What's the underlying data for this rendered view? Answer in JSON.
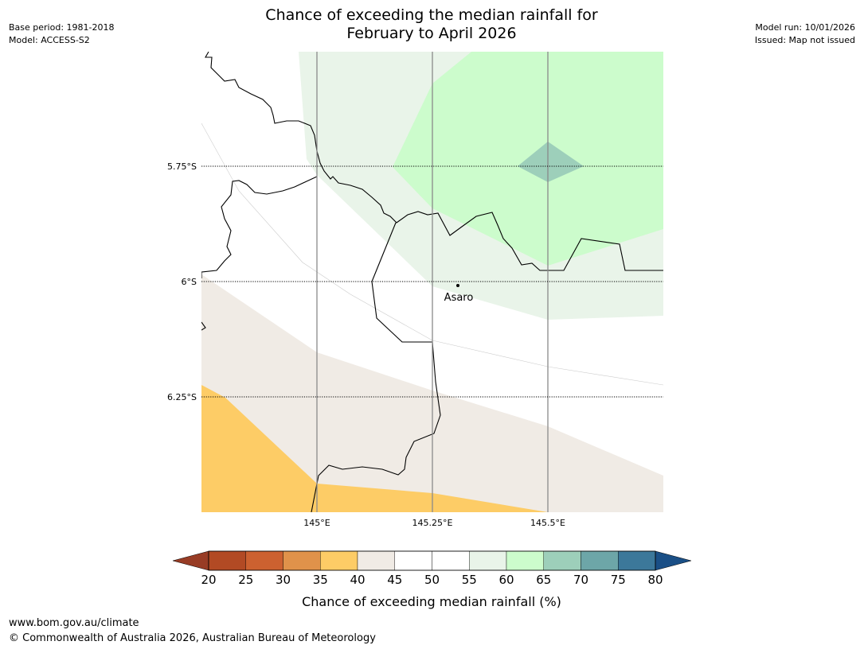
{
  "header": {
    "base_period": "Base period: 1981-2018",
    "model": "Model: ACCESS-S2",
    "model_run": "Model run: 10/01/2026",
    "issued": "Issued: Map not issued",
    "title_line1": "Chance of exceeding the median rainfall for",
    "title_line2": "February to April 2026"
  },
  "map": {
    "lat_labels": [
      "5.75°S",
      "6°S",
      "6.25°S"
    ],
    "lon_labels": [
      "145°E",
      "145.25°E",
      "145.5°E"
    ],
    "town": "Asaro",
    "colors": {
      "c30_35": "#e0924a",
      "c35_40": "#fdcc66",
      "c40_45": "#f0ebe5",
      "c45_55": "#ffffff",
      "c55_60": "#e9f4e9",
      "c60_65": "#ccfccc",
      "c65_70": "#9dcfba"
    }
  },
  "colorbar": {
    "label": "Chance of exceeding median rainfall (%)",
    "ticks": [
      "20",
      "25",
      "30",
      "35",
      "40",
      "45",
      "50",
      "55",
      "60",
      "65",
      "70",
      "75",
      "80"
    ],
    "colors": [
      "#b24a24",
      "#cc6130",
      "#e0924a",
      "#fdcc66",
      "#f0ebe5",
      "#ffffff",
      "#ffffff",
      "#e9f4e9",
      "#ccfccc",
      "#9dcfba",
      "#6da6a8",
      "#3c789a"
    ],
    "under_color": "#983c25",
    "over_color": "#1a4f86"
  },
  "footer": {
    "url": "www.bom.gov.au/climate",
    "copyright": "© Commonwealth of Australia 2026, Australian Bureau of Meteorology"
  }
}
